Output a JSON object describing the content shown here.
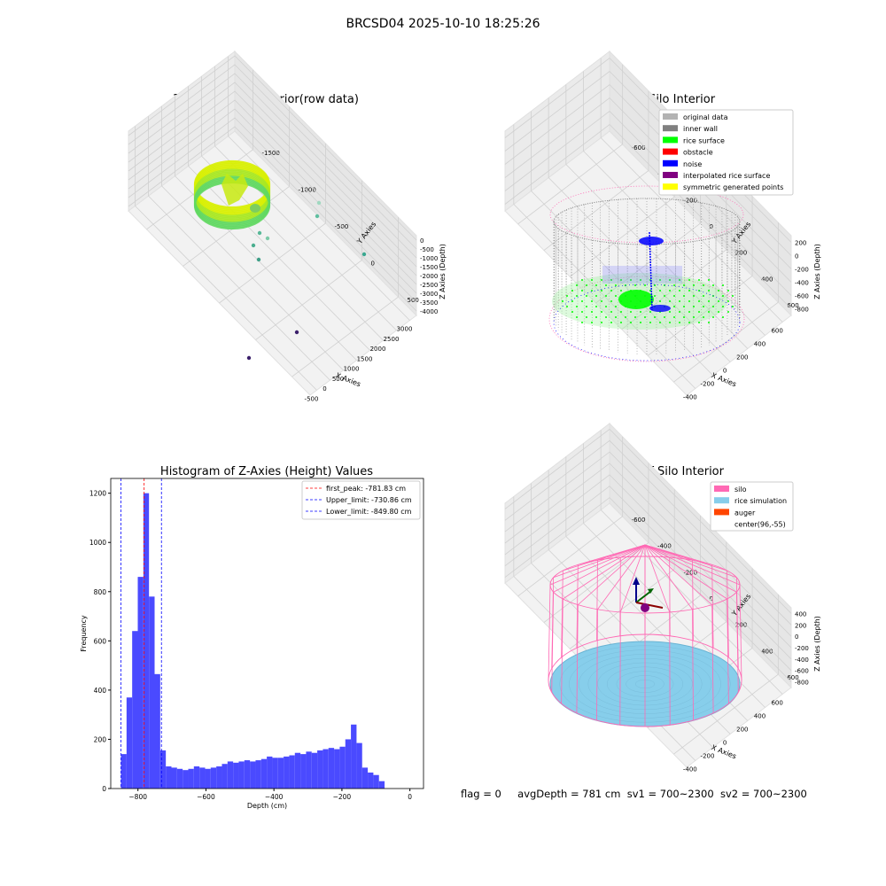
{
  "suptitle": "BRCSD04 2025-10-10 18:25:26",
  "footer": {
    "flag": "flag = 0",
    "avg_depth": "avgDepth = 781 cm",
    "sv1": "sv1 = 700~2300",
    "sv2": "sv2 = 700~2300"
  },
  "colors": {
    "original": "#b3b3b3",
    "inner_wall": "#808080",
    "rice_surface": "#00ff00",
    "obstacle": "#ff0000",
    "noise": "#0000ff",
    "interpolated": "#800080",
    "symmetric": "#ffff00",
    "silo": "#ff69b4",
    "rice_sim": "#87ceeb",
    "auger": "#ff4500",
    "hist_bar": "#4a4aff"
  },
  "chart_data": [
    {
      "type": "scatter3d",
      "title": "3D Plot of Silo Interior(row data)",
      "xlabel": "X Axies",
      "ylabel": "Y Axies",
      "zlabel": "Z Axies (Depth)",
      "x_ticks": [
        "-500",
        "0",
        "500",
        "1000",
        "1500",
        "2000",
        "2500",
        "3000"
      ],
      "y_ticks": [
        "500",
        "0",
        "-500",
        "-1000",
        "-1500"
      ],
      "z_ticks": [
        "0",
        "-500",
        "-1000",
        "-1500",
        "-2000",
        "-2500",
        "-3000",
        "-3500",
        "-4000"
      ],
      "xlim": [
        -600,
        3200
      ],
      "ylim": [
        -1700,
        900
      ],
      "zlim": [
        -4100,
        100
      ],
      "outliers": [
        {
          "x": 2250,
          "y": 700,
          "z": -1600
        },
        {
          "x": 2200,
          "y": 650,
          "z": -1100
        },
        {
          "x": 3000,
          "y": -400,
          "z": -2300
        },
        {
          "x": 700,
          "y": 350,
          "z": -2000
        },
        {
          "x": 650,
          "y": 450,
          "z": -1800
        },
        {
          "x": 550,
          "y": 300,
          "z": -2100
        },
        {
          "x": 600,
          "y": 250,
          "z": -2500
        },
        {
          "x": 2300,
          "y": 500,
          "z": -3900
        },
        {
          "x": 1700,
          "y": -300,
          "z": -4000
        }
      ]
    },
    {
      "type": "scatter3d",
      "title": "3D classify of Silo Interior",
      "xlabel": "X Axies",
      "ylabel": "Y Axies",
      "zlabel": "Z Axies (Depth)",
      "x_ticks": [
        "-400",
        "-200",
        "0",
        "200",
        "400",
        "600"
      ],
      "y_ticks": [
        "600",
        "400",
        "200",
        "0",
        "-200",
        "-400",
        "-600"
      ],
      "z_ticks": [
        "200",
        "0",
        "-200",
        "-400",
        "-600",
        "-800"
      ],
      "legend": [
        {
          "label": "original data",
          "color": "#b3b3b3"
        },
        {
          "label": "inner wall",
          "color": "#808080"
        },
        {
          "label": "rice surface",
          "color": "#00ff00"
        },
        {
          "label": "obstacle",
          "color": "#ff0000"
        },
        {
          "label": "noise",
          "color": "#0000ff"
        },
        {
          "label": "interpolated rice surface",
          "color": "#800080"
        },
        {
          "label": "symmetric generated points",
          "color": "#ffff00"
        }
      ],
      "legend_position": "top-right"
    },
    {
      "type": "bar",
      "title": "Histogram of Z-Axies (Height) Values",
      "xlabel": "Depth (cm)",
      "ylabel": "Frequency",
      "xlim": [
        -880,
        40
      ],
      "ylim": [
        0,
        1260
      ],
      "x_ticks": [
        -800,
        -600,
        -400,
        -200,
        0
      ],
      "y_ticks": [
        0,
        200,
        400,
        600,
        800,
        1000,
        1200
      ],
      "bin_start": -850,
      "bin_width": 16.5,
      "values": [
        140,
        370,
        640,
        860,
        1200,
        780,
        465,
        155,
        90,
        85,
        80,
        75,
        80,
        90,
        85,
        80,
        85,
        90,
        100,
        110,
        105,
        110,
        115,
        110,
        115,
        120,
        130,
        125,
        125,
        130,
        135,
        145,
        140,
        150,
        145,
        155,
        160,
        165,
        160,
        170,
        200,
        260,
        185,
        85,
        65,
        55,
        30
      ],
      "lines": [
        {
          "label": "first_peak: -781.83 cm",
          "x": -781.83,
          "color": "#ff0000"
        },
        {
          "label": "Upper_limit: -730.86 cm",
          "x": -730.86,
          "color": "#0000ff"
        },
        {
          "label": "Lower_limit: -849.80 cm",
          "x": -849.8,
          "color": "#0000ff"
        }
      ],
      "legend_position": "top-right"
    },
    {
      "type": "scatter3d",
      "title": "3D simulation of Silo Interior",
      "xlabel": "X Axies",
      "ylabel": "Y Axies",
      "zlabel": "Z Axies (Depth)",
      "x_ticks": [
        "-400",
        "-200",
        "0",
        "200",
        "400",
        "600"
      ],
      "y_ticks": [
        "600",
        "400",
        "200",
        "0",
        "-200",
        "-400",
        "-600"
      ],
      "z_ticks": [
        "400",
        "200",
        "0",
        "-200",
        "-400",
        "-600",
        "-800"
      ],
      "legend": [
        {
          "label": "silo",
          "color": "#ff69b4"
        },
        {
          "label": "rice simulation",
          "color": "#87ceeb"
        },
        {
          "label": "auger",
          "color": "#ff4500"
        },
        {
          "label": "center(96,-55)",
          "color": ""
        }
      ],
      "legend_position": "top-right"
    }
  ]
}
